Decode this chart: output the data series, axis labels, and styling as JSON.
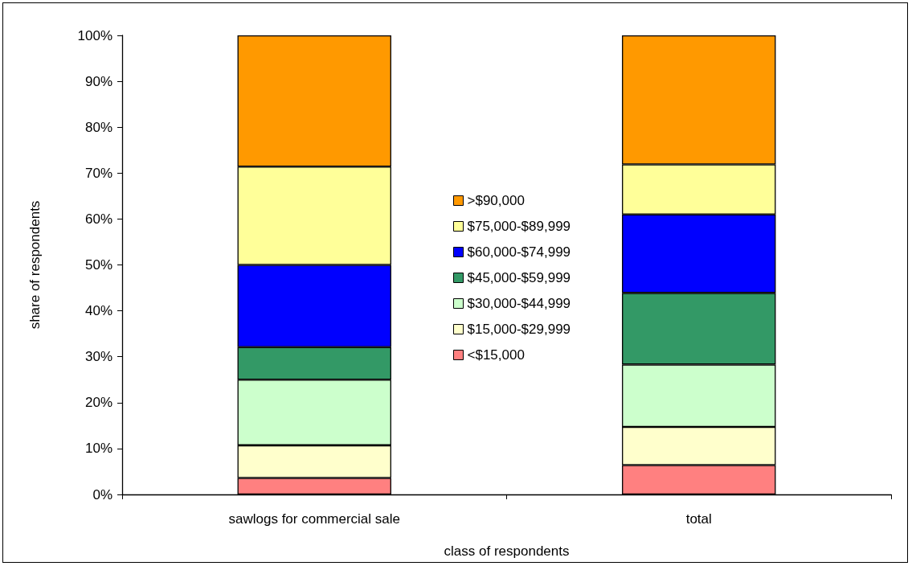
{
  "chart_data": {
    "type": "bar",
    "stacked": true,
    "xlabel": "class of respondents",
    "ylabel": "share of respondents",
    "categories": [
      "sawlogs for commercial sale",
      "total"
    ],
    "series": [
      {
        "name": "<$15,000",
        "color": "#ff8080",
        "values": [
          3.6,
          6.4
        ]
      },
      {
        "name": "$15,000-$29,999",
        "color": "#ffffcc",
        "values": [
          7.1,
          8.3
        ]
      },
      {
        "name": "$30,000-$44,999",
        "color": "#ccffcc",
        "values": [
          14.3,
          13.6
        ]
      },
      {
        "name": "$45,000-$59,999",
        "color": "#339966",
        "values": [
          7.1,
          15.6
        ]
      },
      {
        "name": "$60,000-$74,999",
        "color": "#0000ff",
        "values": [
          17.9,
          17.1
        ]
      },
      {
        "name": "$75,000-$89,999",
        "color": "#ffff99",
        "values": [
          21.4,
          10.9
        ]
      },
      {
        "name": ">$90,000",
        "color": "#ff9900",
        "values": [
          28.6,
          28.1
        ]
      }
    ],
    "ylim": [
      0,
      100
    ],
    "yticks": [
      {
        "value": 0,
        "label": "0%"
      },
      {
        "value": 10,
        "label": "10%"
      },
      {
        "value": 20,
        "label": "20%"
      },
      {
        "value": 30,
        "label": "30%"
      },
      {
        "value": 40,
        "label": "40%"
      },
      {
        "value": 50,
        "label": "50%"
      },
      {
        "value": 60,
        "label": "60%"
      },
      {
        "value": 70,
        "label": "70%"
      },
      {
        "value": 80,
        "label": "80%"
      },
      {
        "value": 90,
        "label": "90%"
      },
      {
        "value": 100,
        "label": "100%"
      }
    ],
    "grid": false,
    "legend": "center"
  }
}
